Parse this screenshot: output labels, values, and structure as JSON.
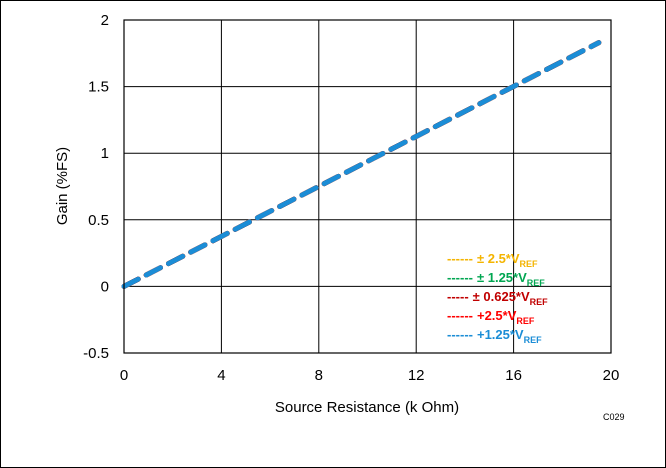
{
  "chart_data": {
    "type": "line",
    "title": "",
    "xlabel": "Source Resistance (k Ohm)",
    "ylabel": "Gain (%FS)",
    "xlim": [
      0,
      20
    ],
    "ylim": [
      -0.5,
      2
    ],
    "x_ticks": [
      "0",
      "4",
      "8",
      "12",
      "16",
      "20"
    ],
    "y_ticks": [
      "-0.5",
      "0",
      "0.5",
      "1",
      "1.5",
      "2"
    ],
    "grid": true,
    "legend_position": "bottom-right",
    "figure_code": "C029",
    "series": [
      {
        "name": "± 2.5*V",
        "sub": "REF",
        "dash": "------",
        "color": "#F4B400",
        "x": [
          0,
          19.5
        ],
        "y": [
          0,
          1.83
        ]
      },
      {
        "name": "± 1.25*V",
        "sub": "REF",
        "dash": "------",
        "color": "#00A651",
        "x": [
          0,
          19.5
        ],
        "y": [
          0,
          1.83
        ]
      },
      {
        "name": "± 0.625*V",
        "sub": "REF",
        "dash": "-----",
        "color": "#C00000",
        "x": [
          0,
          19.5
        ],
        "y": [
          0,
          1.83
        ]
      },
      {
        "name": "+2.5*V",
        "sub": "REF",
        "dash": "------",
        "color": "#FF0000",
        "x": [
          0,
          19.5
        ],
        "y": [
          0,
          1.83
        ]
      },
      {
        "name": "+1.25*V",
        "sub": "REF",
        "dash": "------",
        "color": "#1B8DD6",
        "x": [
          0,
          19.5
        ],
        "y": [
          0,
          1.83
        ]
      }
    ]
  }
}
